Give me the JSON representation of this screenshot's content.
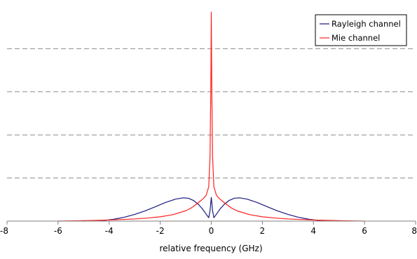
{
  "chart_data": {
    "type": "line",
    "xlabel": "relative frequency (GHz)",
    "ylabel": "",
    "xlim": [
      -8,
      8
    ],
    "ylim": [
      0,
      1
    ],
    "xticks": [
      -8,
      -6,
      -4,
      -2,
      0,
      2,
      4,
      6,
      8
    ],
    "xtick_labels": [
      "-8",
      "-6",
      "-4",
      "-2",
      "0",
      "2",
      "4",
      "6",
      "8"
    ],
    "grid": "horizontal dashed",
    "legend_position": "top-right",
    "series": [
      {
        "name": "Rayleigh channel",
        "color": "#1a1a80",
        "x": [
          -5,
          -4.2,
          -3.8,
          -3.4,
          -3,
          -2.6,
          -2.2,
          -1.8,
          -1.4,
          -1.1,
          -0.9,
          -0.7,
          -0.5,
          -0.35,
          -0.2,
          -0.1,
          -0.05,
          0,
          0.05,
          0.1,
          0.2,
          0.35,
          0.5,
          0.7,
          0.9,
          1.1,
          1.4,
          1.8,
          2.2,
          2.6,
          3,
          3.4,
          3.8,
          4.2,
          5
        ],
        "y": [
          0,
          0.003,
          0.009,
          0.018,
          0.031,
          0.047,
          0.066,
          0.086,
          0.102,
          0.108,
          0.106,
          0.096,
          0.077,
          0.057,
          0.032,
          0.016,
          0.048,
          0.11,
          0.048,
          0.016,
          0.032,
          0.057,
          0.077,
          0.096,
          0.106,
          0.108,
          0.102,
          0.086,
          0.066,
          0.047,
          0.031,
          0.018,
          0.009,
          0.003,
          0
        ]
      },
      {
        "name": "Mie channel",
        "color": "#ff2020",
        "x": [
          -6,
          -5,
          -4,
          -3,
          -2.5,
          -2,
          -1.5,
          -1,
          -0.8,
          -0.6,
          -0.4,
          -0.3,
          -0.2,
          -0.1,
          -0.05,
          -0.02,
          0,
          0.02,
          0.05,
          0.1,
          0.2,
          0.3,
          0.4,
          0.6,
          0.8,
          1,
          1.5,
          2,
          2.5,
          3,
          4,
          5,
          6
        ],
        "y": [
          0,
          0.002,
          0.005,
          0.01,
          0.014,
          0.02,
          0.03,
          0.048,
          0.06,
          0.077,
          0.096,
          0.106,
          0.12,
          0.16,
          0.3,
          0.6,
          0.97,
          0.6,
          0.3,
          0.16,
          0.12,
          0.106,
          0.096,
          0.077,
          0.06,
          0.048,
          0.03,
          0.02,
          0.014,
          0.01,
          0.005,
          0.002,
          0
        ]
      }
    ]
  }
}
